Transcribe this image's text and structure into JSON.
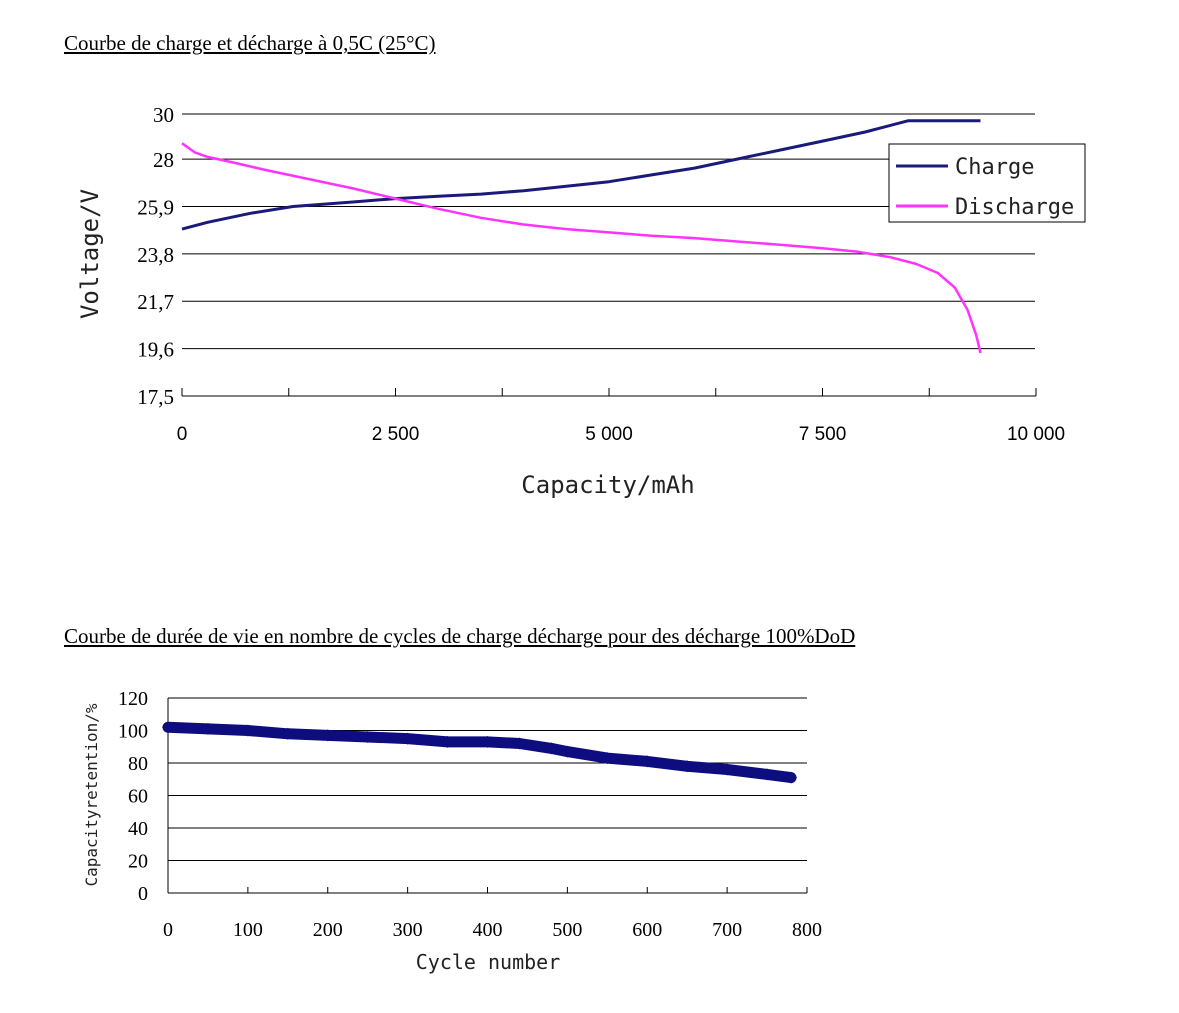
{
  "titles": {
    "chart1": "Courbe de charge et décharge à 0,5C (25°C)",
    "chart2": "Courbe de durée de vie en nombre de cycles de charge décharge pour des décharge 100%DoD"
  },
  "colors": {
    "charge": "#1a1a7a",
    "discharge": "#ff33ff",
    "cycle": "#0d0d80",
    "grid": "#000000"
  },
  "chart_data": [
    {
      "type": "line",
      "title": "Courbe de charge et décharge à 0,5C (25°C)",
      "xlabel": "Capacity/mAh",
      "ylabel": "Voltage/V",
      "xlim": [
        0,
        10000
      ],
      "ylim": [
        17.5,
        30
      ],
      "x_ticks": [
        0,
        2500,
        5000,
        7500,
        10000
      ],
      "x_tick_labels": [
        "0",
        "2 500",
        "5 000",
        "7 500",
        "10 000"
      ],
      "y_ticks": [
        17.5,
        19.6,
        21.7,
        23.8,
        25.9,
        28,
        30
      ],
      "y_tick_labels": [
        "17,5",
        "19,6",
        "21,7",
        "23,8",
        "25,9",
        "28",
        "30"
      ],
      "grid": "horizontal",
      "legend_position": "top-right",
      "series": [
        {
          "name": "Charge",
          "points": [
            [
              0,
              24.9
            ],
            [
              300,
              25.2
            ],
            [
              800,
              25.6
            ],
            [
              1300,
              25.9
            ],
            [
              2000,
              26.1
            ],
            [
              2500,
              26.25
            ],
            [
              3000,
              26.35
            ],
            [
              3500,
              26.45
            ],
            [
              4000,
              26.6
            ],
            [
              4500,
              26.8
            ],
            [
              5000,
              27.0
            ],
            [
              5500,
              27.3
            ],
            [
              6000,
              27.6
            ],
            [
              6500,
              28.0
            ],
            [
              7000,
              28.4
            ],
            [
              7500,
              28.8
            ],
            [
              8000,
              29.2
            ],
            [
              8500,
              29.7
            ],
            [
              9350,
              29.7
            ]
          ]
        },
        {
          "name": "Discharge",
          "points": [
            [
              0,
              28.7
            ],
            [
              150,
              28.3
            ],
            [
              300,
              28.1
            ],
            [
              600,
              27.85
            ],
            [
              1000,
              27.5
            ],
            [
              1500,
              27.1
            ],
            [
              2000,
              26.7
            ],
            [
              2500,
              26.25
            ],
            [
              3000,
              25.8
            ],
            [
              3500,
              25.4
            ],
            [
              4000,
              25.1
            ],
            [
              4500,
              24.9
            ],
            [
              5000,
              24.75
            ],
            [
              5500,
              24.6
            ],
            [
              6000,
              24.5
            ],
            [
              6500,
              24.35
            ],
            [
              7000,
              24.2
            ],
            [
              7500,
              24.05
            ],
            [
              7900,
              23.9
            ],
            [
              8300,
              23.65
            ],
            [
              8600,
              23.35
            ],
            [
              8850,
              22.95
            ],
            [
              9050,
              22.3
            ],
            [
              9200,
              21.3
            ],
            [
              9300,
              20.2
            ],
            [
              9350,
              19.4
            ]
          ]
        }
      ]
    },
    {
      "type": "scatter",
      "title": "Courbe de durée de vie en nombre de cycles de charge décharge pour des décharge 100%DoD",
      "xlabel": "Cycle number",
      "ylabel": "Capacityretention/%",
      "xlim": [
        0,
        800
      ],
      "ylim": [
        0,
        120
      ],
      "x_ticks": [
        0,
        100,
        200,
        300,
        400,
        500,
        600,
        700,
        800
      ],
      "x_tick_labels": [
        "0",
        "100",
        "200",
        "300",
        "400",
        "500",
        "600",
        "700",
        "800"
      ],
      "y_ticks": [
        0,
        20,
        40,
        60,
        80,
        100,
        120
      ],
      "y_tick_labels": [
        "0",
        "20",
        "40",
        "60",
        "80",
        "100",
        "120"
      ],
      "grid": "horizontal",
      "series": [
        {
          "name": "",
          "points": [
            [
              0,
              102
            ],
            [
              50,
              101
            ],
            [
              100,
              100
            ],
            [
              150,
              98
            ],
            [
              200,
              97
            ],
            [
              250,
              96
            ],
            [
              300,
              95
            ],
            [
              350,
              93
            ],
            [
              400,
              93
            ],
            [
              440,
              92
            ],
            [
              480,
              89
            ],
            [
              500,
              87
            ],
            [
              550,
              83
            ],
            [
              600,
              81
            ],
            [
              650,
              78
            ],
            [
              700,
              76
            ],
            [
              750,
              73
            ],
            [
              780,
              71
            ]
          ]
        }
      ]
    }
  ]
}
